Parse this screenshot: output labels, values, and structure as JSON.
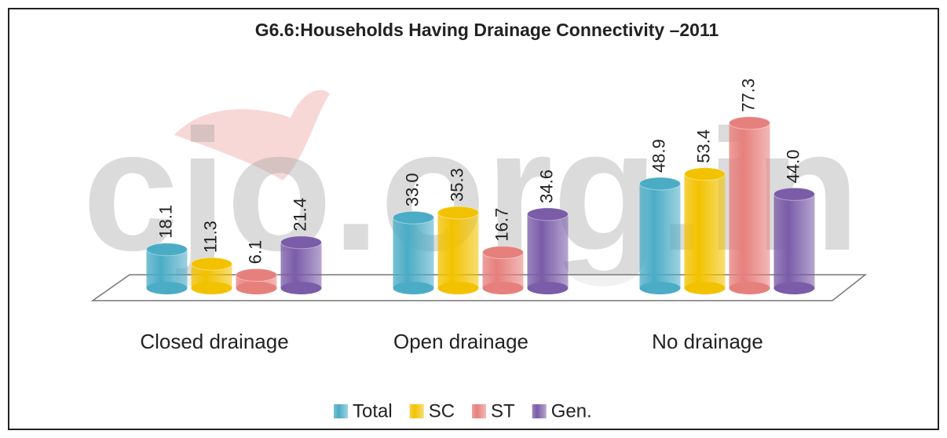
{
  "chart_data": {
    "type": "bar3d",
    "title": "G6.6:Households Having  Drainage Connectivity –2011",
    "watermark": "cjo.org.in",
    "categories": [
      "Closed drainage",
      "Open drainage",
      "No drainage"
    ],
    "series": [
      {
        "name": "Total",
        "color": "#4bacc6",
        "values": [
          18.1,
          33.0,
          48.9
        ],
        "value_labels": [
          "18.1",
          "33.0",
          "48.9"
        ]
      },
      {
        "name": "SC",
        "color": "#f2c200",
        "values": [
          11.3,
          35.3,
          53.4
        ],
        "value_labels": [
          "11.3",
          "35.3",
          "53.4"
        ]
      },
      {
        "name": "ST",
        "color": "#e6807d",
        "values": [
          6.1,
          16.7,
          77.3
        ],
        "value_labels": [
          "6.1",
          "16.7",
          "77.3"
        ]
      },
      {
        "name": "Gen.",
        "color": "#7a5ca8",
        "values": [
          21.4,
          34.6,
          44.0
        ],
        "value_labels": [
          "21.4",
          "34.6",
          "44.0"
        ]
      }
    ]
  }
}
